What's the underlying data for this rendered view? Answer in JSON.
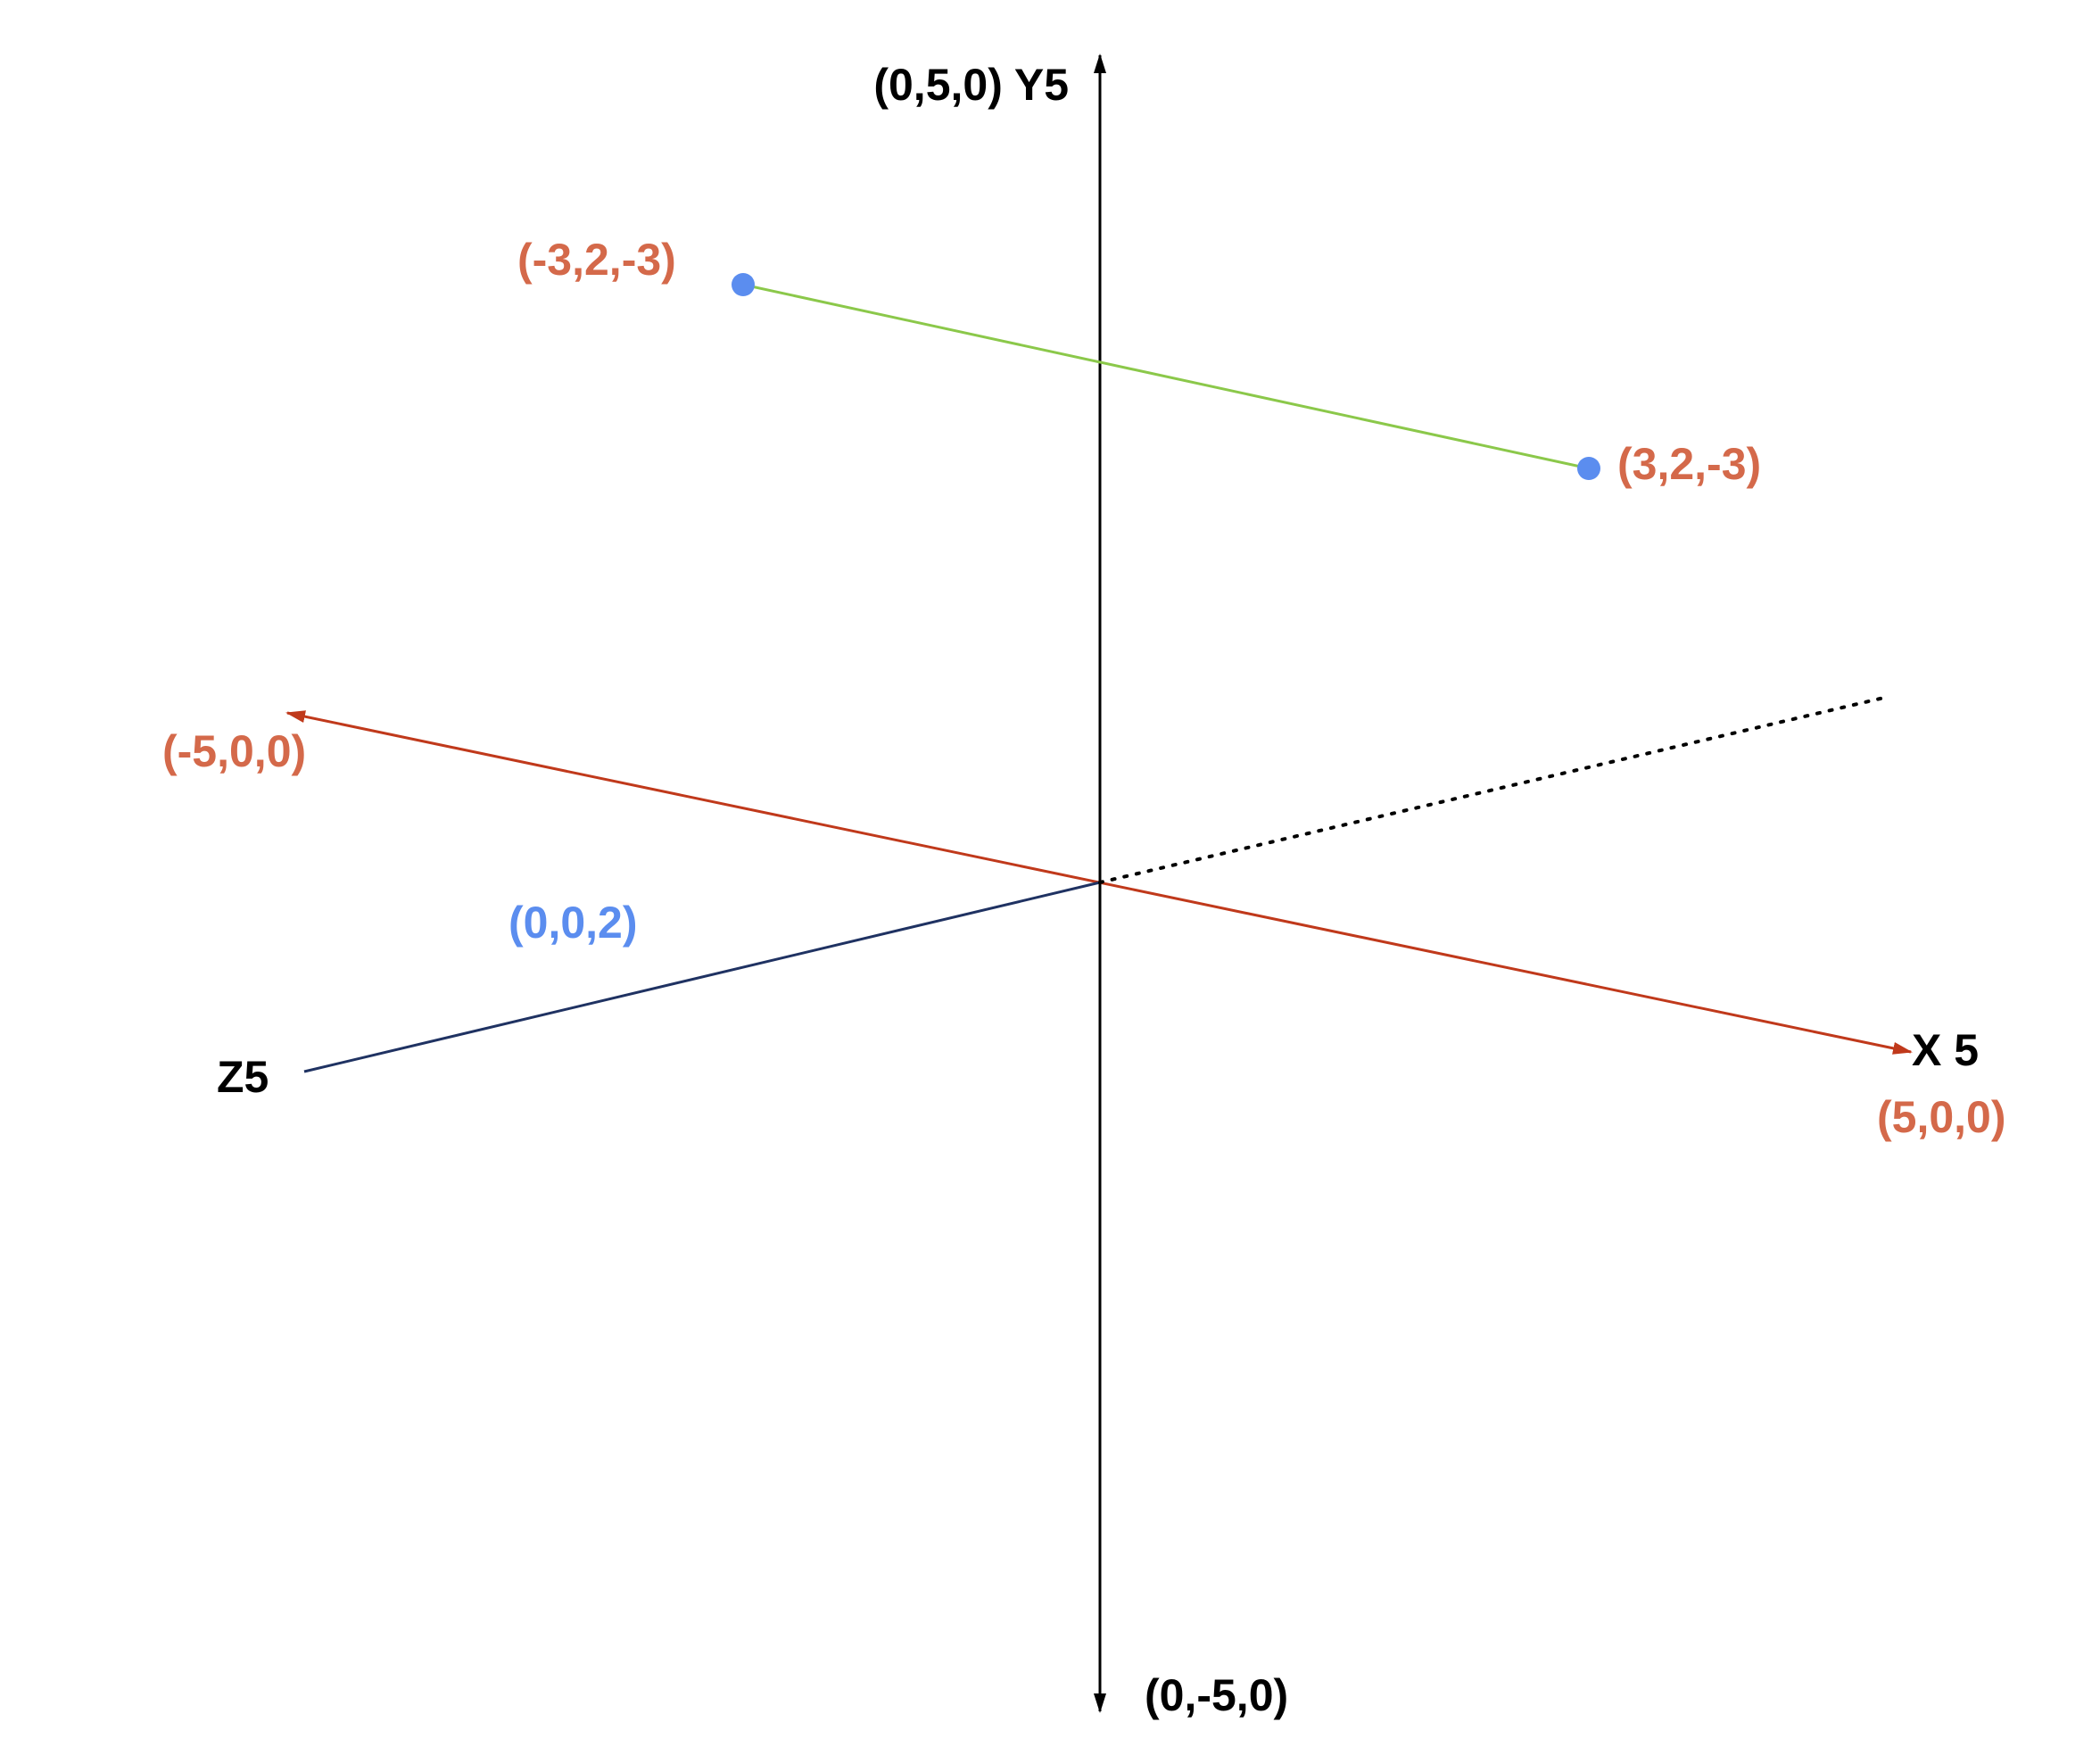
{
  "axes": {
    "y_positive": "(0,5,0) Y5",
    "y_negative": "(0,-5,0)",
    "x_positive": "X 5",
    "x_positive_point": "(5,0,0)",
    "x_negative_point": "(-5,0,0)",
    "z_positive": "Z5",
    "z_point": "(0,0,2)"
  },
  "segment": {
    "start_label": "(-3,2,-3)",
    "end_label": "(3,2,-3)"
  }
}
